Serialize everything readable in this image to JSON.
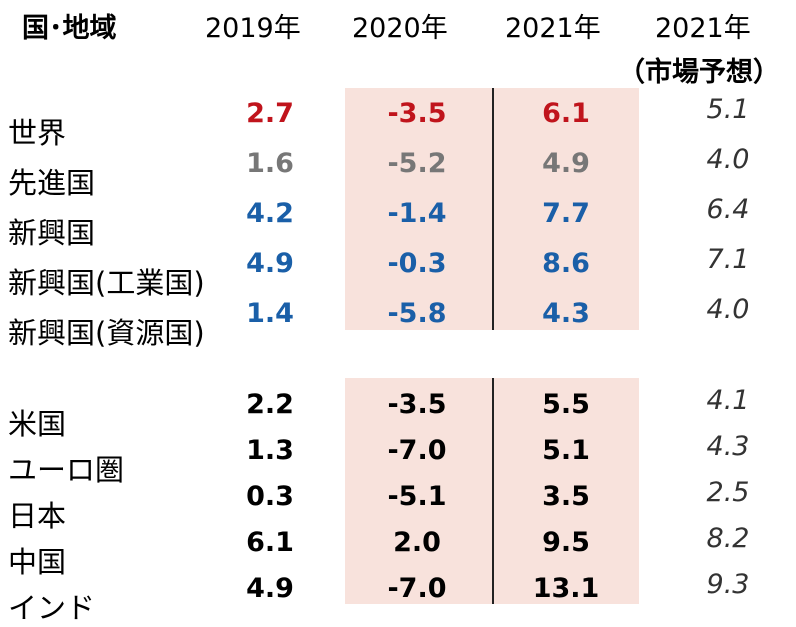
{
  "headers": {
    "region": "国･地域",
    "y2019": "2019年",
    "y2020": "2020年",
    "y2021": "2021年",
    "y2021_forecast": "2021年",
    "forecast_note": "（市場予想）"
  },
  "colors": {
    "world": "#c0141c",
    "advanced": "#777777",
    "emerging": "#1a5fa8",
    "country": "#000000",
    "forecast": "#333333",
    "shade": "#f8e2dc"
  },
  "chart_data": {
    "type": "table",
    "columns": [
      "国･地域",
      "2019年",
      "2020年",
      "2021年",
      "2021年（市場予想）"
    ],
    "groups": [
      {
        "rows": [
          {
            "label": "世界",
            "y2019": "2.7",
            "y2020": "-3.5",
            "y2021": "6.1",
            "forecast": "5.1",
            "color": "world"
          },
          {
            "label": "先進国",
            "y2019": "1.6",
            "y2020": "-5.2",
            "y2021": "4.9",
            "forecast": "4.0",
            "color": "advanced"
          },
          {
            "label": "新興国",
            "y2019": "4.2",
            "y2020": "-1.4",
            "y2021": "7.7",
            "forecast": "6.4",
            "color": "emerging"
          },
          {
            "label": "新興国(工業国)",
            "y2019": "4.9",
            "y2020": "-0.3",
            "y2021": "8.6",
            "forecast": "7.1",
            "color": "emerging"
          },
          {
            "label": "新興国(資源国)",
            "y2019": "1.4",
            "y2020": "-5.8",
            "y2021": "4.3",
            "forecast": "4.0",
            "color": "emerging"
          }
        ]
      },
      {
        "rows": [
          {
            "label": "米国",
            "y2019": "2.2",
            "y2020": "-3.5",
            "y2021": "5.5",
            "forecast": "4.1",
            "color": "country"
          },
          {
            "label": "ユーロ圏",
            "y2019": "1.3",
            "y2020": "-7.0",
            "y2021": "5.1",
            "forecast": "4.3",
            "color": "country"
          },
          {
            "label": "日本",
            "y2019": "0.3",
            "y2020": "-5.1",
            "y2021": "3.5",
            "forecast": "2.5",
            "color": "country"
          },
          {
            "label": "中国",
            "y2019": "6.1",
            "y2020": "2.0",
            "y2021": "9.5",
            "forecast": "8.2",
            "color": "country"
          },
          {
            "label": "インド",
            "y2019": "4.9",
            "y2020": "-7.0",
            "y2021": "13.1",
            "forecast": "9.3",
            "color": "country"
          }
        ]
      }
    ]
  }
}
